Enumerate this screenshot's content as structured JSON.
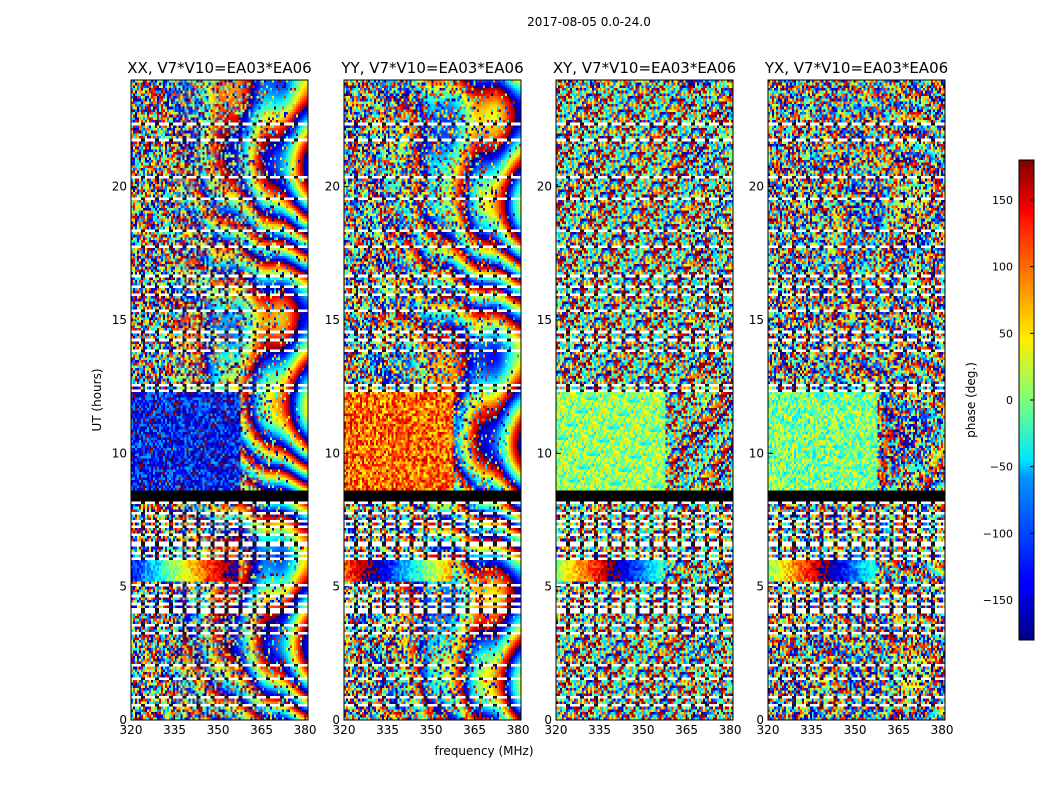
{
  "figure_title": "2017-08-05 0.0-24.0",
  "chart_data": {
    "type": "heatmap",
    "x_label": "frequency (MHz)",
    "y_label": "UT (hours)",
    "xlim": [
      320,
      381
    ],
    "ylim": [
      0,
      24
    ],
    "x_ticks": [
      320,
      335,
      350,
      365,
      380
    ],
    "y_ticks": [
      0,
      5,
      10,
      15,
      20
    ],
    "panels": [
      {
        "title": "XX, V7*V10=EA03*EA06",
        "pol": "XX",
        "coherent_phase_deg": -130,
        "fringe_strength": 1.0
      },
      {
        "title": "YY, V7*V10=EA03*EA06",
        "pol": "YY",
        "coherent_phase_deg": 100,
        "fringe_strength": 1.0
      },
      {
        "title": "XY, V7*V10=EA03*EA06",
        "pol": "XY",
        "coherent_phase_deg": 0,
        "fringe_strength": 0.35
      },
      {
        "title": "YX, V7*V10=EA03*EA06",
        "pol": "YX",
        "coherent_phase_deg": 0,
        "fringe_strength": 0.35
      }
    ],
    "flagged_rows_ut_hours": [
      0.55,
      0.85,
      1.0,
      1.55,
      1.8,
      2.05,
      3.3,
      3.55,
      4.1,
      4.35,
      4.65,
      5.05,
      6.05,
      6.3,
      6.6,
      6.95,
      7.25,
      7.45,
      7.8,
      8.2,
      8.55,
      12.3,
      12.55,
      13.0,
      13.8,
      14.25,
      14.55,
      15.35,
      15.9,
      16.25,
      16.65,
      17.2,
      17.75,
      18.0,
      18.35,
      18.7,
      19.3,
      19.55,
      20.35,
      20.8,
      21.75,
      22.4,
      22.7
    ],
    "black_band_ut_hours": [
      8.2,
      8.55
    ],
    "colorbar": {
      "label": "phase (deg.)",
      "range": [
        -180,
        180
      ],
      "ticks": [
        -150,
        -100,
        -50,
        0,
        50,
        100,
        150
      ],
      "colormap": "jet"
    }
  }
}
